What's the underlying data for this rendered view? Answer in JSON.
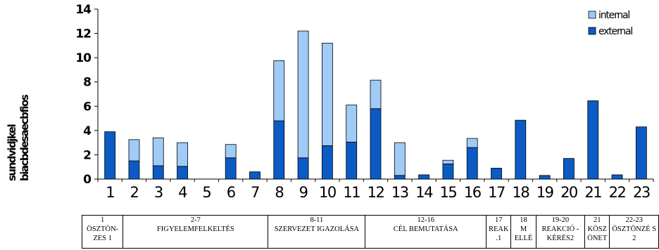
{
  "chart_data": {
    "type": "bar",
    "stacked": true,
    "categories": [
      "1",
      "2",
      "3",
      "4",
      "5",
      "6",
      "7",
      "8",
      "9",
      "10",
      "11",
      "12",
      "13",
      "14",
      "15",
      "16",
      "17",
      "18",
      "19",
      "20",
      "21",
      "22",
      "23"
    ],
    "series": [
      {
        "name": "external",
        "color": "#0b5bc4",
        "values": [
          3.9,
          1.5,
          1.1,
          1.05,
          0,
          1.75,
          0.6,
          4.8,
          1.75,
          2.75,
          3.05,
          5.8,
          0.3,
          0.35,
          1.25,
          2.6,
          0.9,
          4.85,
          0.3,
          1.7,
          6.45,
          0.35,
          4.3
        ]
      },
      {
        "name": "internal",
        "color": "#9fcbf6",
        "values": [
          0,
          1.75,
          2.3,
          1.95,
          0,
          1.1,
          0,
          4.95,
          10.45,
          8.45,
          3.05,
          2.35,
          2.7,
          0,
          0.3,
          0.75,
          0,
          0,
          0,
          0,
          0,
          0,
          0
        ]
      }
    ],
    "ylim": [
      0,
      14
    ],
    "yticks": [
      "0",
      "2",
      "4",
      "6",
      "8",
      "10",
      "12",
      "14"
    ],
    "ylabel_lines": [
      "sundvidjkel",
      "biacbdesaecbfios"
    ],
    "legend": {
      "position": "top-right",
      "entries": [
        "internal",
        "external"
      ]
    },
    "grid": false
  },
  "segments": [
    {
      "cols": 1,
      "range": "1",
      "label": "ÖSZTÖN-ZES 1"
    },
    {
      "cols": 6,
      "range": "2-7",
      "label": "FIGYELEMFELKELTÉS"
    },
    {
      "cols": 4,
      "range": "8-11",
      "label": "SZERVEZET IGAZOLÁSA"
    },
    {
      "cols": 5,
      "range": "12-16",
      "label": "CÉL BEMUTATÁSA"
    },
    {
      "cols": 1,
      "range": "17",
      "label": "REAK .1"
    },
    {
      "cols": 1,
      "range": "18",
      "label": "M ELLÉ"
    },
    {
      "cols": 2,
      "range": "19-20",
      "label": "REAKCIÓ -KÉRÉS2"
    },
    {
      "cols": 1,
      "range": "21",
      "label": "KÖSZ ÖNET"
    },
    {
      "cols": 2,
      "range": "22-23",
      "label": "ÖSZTÖNZÉ S 2"
    }
  ]
}
